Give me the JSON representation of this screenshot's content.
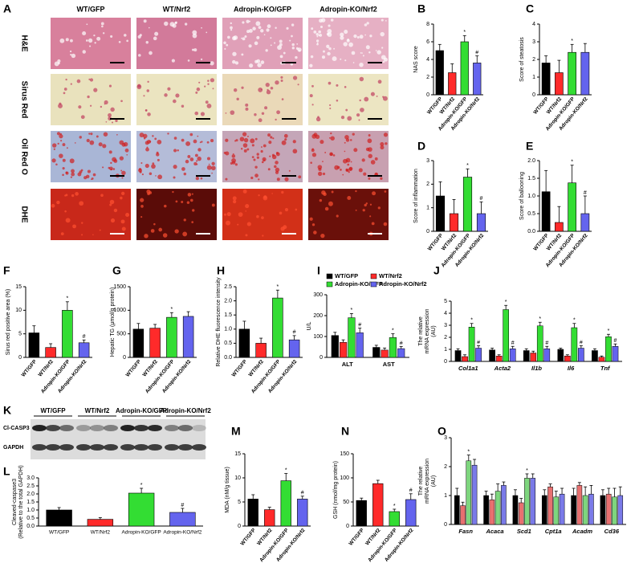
{
  "panel_a": {
    "panel": "A",
    "columns": [
      "WT/GFP",
      "WT/Nrf2",
      "Adropin-KO/GFP",
      "Adropin-KO/Nrf2"
    ],
    "rows": [
      "H&E",
      "Sirus Red",
      "Oil Red O",
      "DHE"
    ]
  },
  "panel_k": {
    "panel": "K",
    "columns": [
      "WT/GFP",
      "WT/Nrf2",
      "Adropin-KO/GFP",
      "Adropin-KO/Nrf2"
    ],
    "rows": [
      "Cl-CASP3",
      "GAPDH"
    ]
  },
  "chart_data": [
    {
      "type": "bar",
      "panel": "B",
      "y_label": [
        "NAS score"
      ],
      "categories": [
        "WT/GFP",
        "WT/Nrf2",
        "Adropin-KO/GFP",
        "Adropin-KO/Nrf2"
      ],
      "colors": [
        "#000000",
        "#ff2a2a",
        "#33dd33",
        "#6464ee"
      ],
      "values": [
        5,
        2.5,
        6,
        3.6
      ],
      "errors": [
        0.7,
        1,
        0.7,
        0.8
      ],
      "value_marks": [
        null,
        null,
        "*",
        "#"
      ],
      "ylim": [
        0,
        8
      ],
      "yticks": [
        0,
        2,
        4,
        6,
        8
      ]
    },
    {
      "type": "bar",
      "panel": "C",
      "y_label": [
        "Score of steatosis"
      ],
      "categories": [
        "WT/GFP",
        "WT/Nrf2",
        "Adropin-KO/GFP",
        "Adropin-KO/Nrf2"
      ],
      "colors": [
        "#000000",
        "#ff2a2a",
        "#33dd33",
        "#6464ee"
      ],
      "values": [
        1.8,
        1.25,
        2.4,
        2.4
      ],
      "errors": [
        0.4,
        0.7,
        0.45,
        0.5
      ],
      "value_marks": [
        null,
        null,
        "*",
        null
      ],
      "ylim": [
        0,
        4
      ],
      "yticks": [
        0,
        1,
        2,
        3,
        4
      ]
    },
    {
      "type": "bar",
      "panel": "D",
      "y_label": [
        "Score of inflammation"
      ],
      "categories": [
        "WT/GFP",
        "WT/Nrf2",
        "Adropin-KO/GFP",
        "Adropin-KO/Nrf2"
      ],
      "colors": [
        "#000000",
        "#ff2a2a",
        "#33dd33",
        "#6464ee"
      ],
      "values": [
        1.5,
        0.75,
        2.3,
        0.75
      ],
      "errors": [
        0.6,
        0.6,
        0.35,
        0.5
      ],
      "value_marks": [
        null,
        null,
        "*",
        "#"
      ],
      "ylim": [
        0,
        3
      ],
      "yticks": [
        0,
        1,
        2,
        3
      ]
    },
    {
      "type": "bar",
      "panel": "E",
      "y_label": [
        "Score of ballooning"
      ],
      "categories": [
        "WT/GFP",
        "WT/Nrf2",
        "Adropin-KO/GFP",
        "Adropin-KO/Nrf2"
      ],
      "colors": [
        "#000000",
        "#ff2a2a",
        "#33dd33",
        "#6464ee"
      ],
      "values": [
        1.12,
        0.25,
        1.37,
        0.5
      ],
      "errors": [
        0.6,
        0.45,
        0.5,
        0.5
      ],
      "value_marks": [
        null,
        null,
        "*",
        "#"
      ],
      "ylim": [
        0,
        2
      ],
      "yticks": [
        {
          "value": 0,
          "label": "0.0"
        },
        0.5,
        {
          "value": 1,
          "label": "1.0"
        },
        1.5,
        {
          "value": 2,
          "label": "2.0"
        }
      ]
    },
    {
      "type": "bar",
      "panel": "F",
      "y_label": [
        "Sirus red positive area (%)"
      ],
      "categories": [
        "WT/GFP",
        "WT/Nrf2",
        "Adropin-KO/GFP",
        "Adropin-KO/Nrf2"
      ],
      "colors": [
        "#000000",
        "#ff2a2a",
        "#33dd33",
        "#6464ee"
      ],
      "values": [
        5.2,
        2.1,
        10,
        3.1
      ],
      "errors": [
        1.5,
        0.8,
        1.8,
        0.6
      ],
      "value_marks": [
        null,
        null,
        "*",
        "#"
      ],
      "ylim": [
        0,
        15
      ],
      "yticks": [
        0,
        5,
        10,
        15
      ]
    },
    {
      "type": "bar",
      "panel": "G",
      "y_label": [
        "Hepatic TG (μmol/g protein)"
      ],
      "categories": [
        "WT/GFP",
        "WT/Nrf2",
        "Adropin-KO/GFP",
        "Adropin-KO/Nrf2"
      ],
      "colors": [
        "#000000",
        "#ff2a2a",
        "#33dd33",
        "#6464ee"
      ],
      "values": [
        600,
        620,
        850,
        870
      ],
      "errors": [
        120,
        80,
        100,
        100
      ],
      "value_marks": [
        null,
        null,
        "*",
        null
      ],
      "ylim": [
        0,
        1500
      ],
      "yticks": [
        0,
        500,
        1000,
        1500
      ]
    },
    {
      "type": "bar",
      "panel": "H",
      "y_label": [
        "Relative DHE fluorescence intensity"
      ],
      "categories": [
        "WT/GFP",
        "WT/Nrf2",
        "Adropin-KO/GFP",
        "Adropin-KO/Nrf2"
      ],
      "colors": [
        "#000000",
        "#ff2a2a",
        "#33dd33",
        "#6464ee"
      ],
      "values": [
        1,
        0.5,
        2.1,
        0.62
      ],
      "errors": [
        0.28,
        0.18,
        0.28,
        0.15
      ],
      "value_marks": [
        null,
        null,
        "*",
        "#"
      ],
      "ylim": [
        0,
        2.5
      ],
      "yticks": [
        {
          "value": 0,
          "label": "0.0"
        },
        0.5,
        {
          "value": 1,
          "label": "1.0"
        },
        1.5,
        {
          "value": 2,
          "label": "2.0"
        },
        2.5
      ]
    },
    {
      "type": "grouped-bar",
      "panel": "I",
      "y_label": [
        "U/L"
      ],
      "categories": [
        "ALT",
        "AST"
      ],
      "ylim": [
        0,
        300
      ],
      "yticks": [
        0,
        100,
        200,
        300
      ],
      "series": [
        {
          "name": "WT/GFP",
          "color": "#000000",
          "values": [
            105,
            48
          ],
          "errors": [
            15,
            10
          ],
          "value_marks": [
            null,
            null
          ]
        },
        {
          "name": "WT/Nrf2",
          "color": "#ff2a2a",
          "values": [
            72,
            35
          ],
          "errors": [
            12,
            10
          ],
          "value_marks": [
            null,
            null
          ]
        },
        {
          "name": "Adropin-KO/GFP",
          "color": "#33dd33",
          "values": [
            190,
            95
          ],
          "errors": [
            20,
            18
          ],
          "value_marks": [
            "*",
            "*"
          ]
        },
        {
          "name": "Adropin-KO/Nrf2",
          "color": "#6464ee",
          "values": [
            118,
            42
          ],
          "errors": [
            22,
            10
          ],
          "value_marks": [
            "#",
            "#"
          ]
        }
      ]
    },
    {
      "type": "grouped-bar",
      "panel": "J",
      "y_label": [
        "The relative",
        "mRNA expression",
        "(AU)"
      ],
      "categories": [
        "Col1a1",
        "Acta2",
        "Il1b",
        "Il6",
        "Tnf"
      ],
      "ylim": [
        0,
        5
      ],
      "yticks": [
        0,
        1,
        2,
        3,
        4,
        5
      ],
      "series": [
        {
          "color": "#000000",
          "values": [
            0.9,
            0.95,
            0.9,
            1,
            0.9
          ],
          "errors": [
            0.15,
            0.15,
            0.15,
            0.1,
            0.15
          ],
          "value_marks": [
            null,
            null,
            null,
            null,
            null
          ]
        },
        {
          "color": "#ff2a2a",
          "values": [
            0.4,
            0.45,
            0.7,
            0.45,
            0.35
          ],
          "errors": [
            0.15,
            0.1,
            0.15,
            0.1,
            0.1
          ],
          "value_marks": [
            null,
            null,
            null,
            null,
            null
          ]
        },
        {
          "color": "#33dd33",
          "values": [
            2.85,
            4.3,
            2.95,
            2.8,
            2.05
          ],
          "errors": [
            0.3,
            0.35,
            0.3,
            0.35,
            0.2
          ],
          "value_marks": [
            "*",
            "*",
            "*",
            "*",
            "*"
          ]
        },
        {
          "color": "#6464ee",
          "values": [
            1.1,
            1.05,
            1.05,
            1.1,
            1.25
          ],
          "errors": [
            0.2,
            0.2,
            0.2,
            0.2,
            0.2
          ],
          "value_marks": [
            "#",
            "#",
            "#",
            "#",
            "#"
          ]
        }
      ]
    },
    {
      "type": "bar",
      "panel": "L",
      "y_label": [
        "Cleaved-caspase3",
        "(Relative to the total GAPDH)"
      ],
      "categories": [
        "WT/GFP",
        "WT/Nrf2",
        "Adropin-KO/GFP",
        "Adropin-KO/Nrf2"
      ],
      "colors": [
        "#000000",
        "#ff2a2a",
        "#33dd33",
        "#6464ee"
      ],
      "values": [
        1,
        0.42,
        2.05,
        0.85
      ],
      "errors": [
        0.15,
        0.1,
        0.3,
        0.25
      ],
      "value_marks": [
        null,
        null,
        "*",
        "#"
      ],
      "ylim": [
        0,
        3
      ],
      "yticks": [
        {
          "value": 0,
          "label": "0.0"
        },
        0.5,
        {
          "value": 1,
          "label": "1.0"
        },
        1.5,
        {
          "value": 2,
          "label": "2.0"
        },
        2.5,
        {
          "value": 3,
          "label": "3.0"
        }
      ]
    },
    {
      "type": "bar",
      "panel": "M",
      "y_label": [
        "MDA (nM/g tissue)"
      ],
      "categories": [
        "WT/GFP",
        "WT/Nrf2",
        "Adropin-KO/GFP",
        "Adropin-KO/Nrf2"
      ],
      "colors": [
        "#000000",
        "#ff2a2a",
        "#33dd33",
        "#6464ee"
      ],
      "values": [
        5.6,
        3.4,
        9.4,
        5.6
      ],
      "errors": [
        0.9,
        0.5,
        1.5,
        0.6
      ],
      "value_marks": [
        null,
        null,
        "*",
        "#"
      ],
      "ylim": [
        0,
        15
      ],
      "yticks": [
        0,
        5,
        10,
        15
      ]
    },
    {
      "type": "bar",
      "panel": "N",
      "y_label": [
        "GSH (nmol/mg protein)"
      ],
      "categories": [
        "WT/GFP",
        "WT/Nrf2",
        "Adropin-KO/GFP",
        "Adropin-KO/Nrf2"
      ],
      "colors": [
        "#000000",
        "#ff2a2a",
        "#33dd33",
        "#6464ee"
      ],
      "values": [
        53,
        88,
        30,
        55
      ],
      "errors": [
        5,
        7,
        5,
        12
      ],
      "value_marks": [
        null,
        null,
        "*",
        "#"
      ],
      "ylim": [
        0,
        150
      ],
      "yticks": [
        0,
        50,
        100,
        150
      ]
    },
    {
      "type": "grouped-bar",
      "panel": "O",
      "y_label": [
        "The relative",
        "mRNA expression",
        "(AU)"
      ],
      "categories": [
        "Fasn",
        "Acaca",
        "Scd1",
        "Cpt1a",
        "Acadm",
        "Cd36"
      ],
      "ylim": [
        0,
        3
      ],
      "yticks": [
        0,
        1,
        2,
        3
      ],
      "series": [
        {
          "color": "#000000",
          "values": [
            1,
            1,
            1,
            1,
            1,
            1
          ],
          "errors": [
            0.25,
            0.15,
            0.2,
            0.2,
            0.25,
            0.2
          ],
          "value_marks": [
            null,
            null,
            null,
            null,
            null,
            null
          ]
        },
        {
          "color": "#e87070",
          "values": [
            0.65,
            0.85,
            0.75,
            1.3,
            1.35,
            1.05
          ],
          "errors": [
            0.12,
            0.2,
            0.15,
            0.1,
            0.1,
            0.2
          ],
          "value_marks": [
            null,
            null,
            null,
            null,
            null,
            null
          ]
        },
        {
          "color": "#7ed67e",
          "values": [
            2.2,
            1.15,
            1.6,
            0.95,
            1,
            0.95
          ],
          "errors": [
            0.2,
            0.25,
            0.15,
            0.2,
            0.3,
            0.3
          ],
          "value_marks": [
            "*",
            null,
            "*",
            null,
            null,
            null
          ]
        },
        {
          "color": "#7a7ae8",
          "values": [
            2.05,
            1.35,
            1.6,
            1.05,
            1.05,
            1
          ],
          "errors": [
            0.2,
            0.12,
            0.15,
            0.2,
            0.3,
            0.3
          ],
          "value_marks": [
            null,
            null,
            null,
            null,
            null,
            null
          ]
        }
      ]
    }
  ]
}
